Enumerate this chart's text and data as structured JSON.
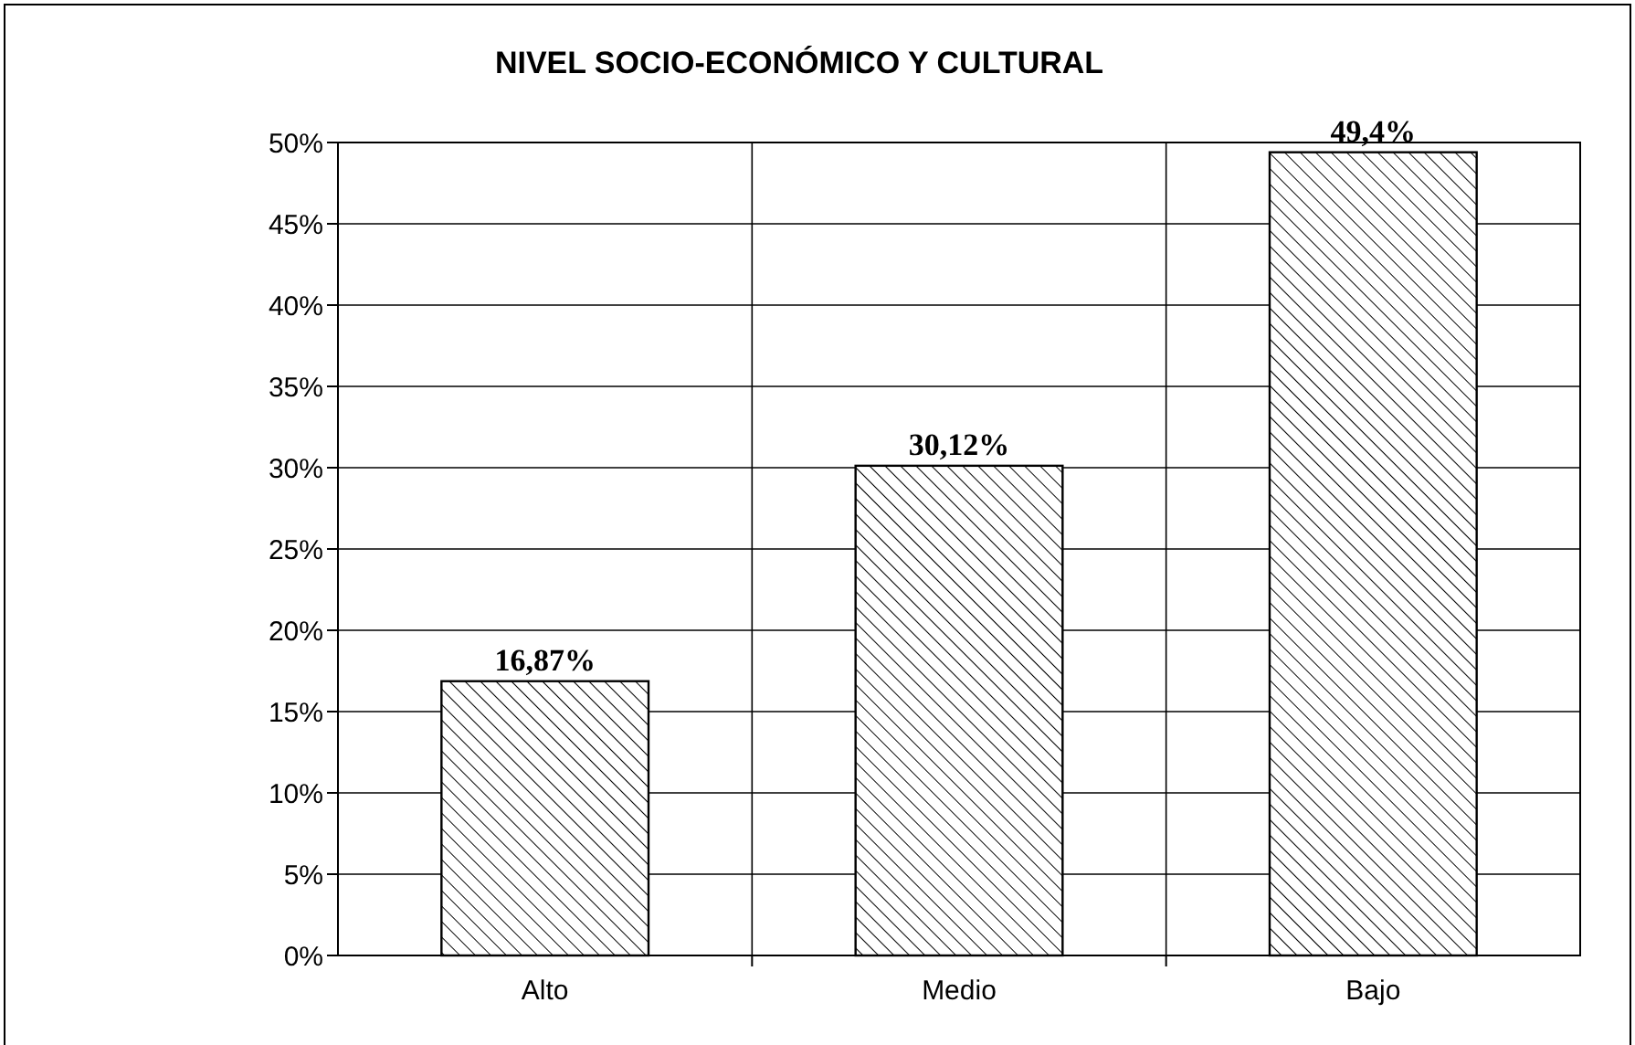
{
  "chart_data": {
    "type": "bar",
    "title": "NIVEL SOCIO-ECONÓMICO Y CULTURAL",
    "categories": [
      "Alto",
      "Medio",
      "Bajo"
    ],
    "values": [
      16.87,
      30.12,
      49.4
    ],
    "value_labels": [
      "16,87%",
      "30,12%",
      "49,4%"
    ],
    "color": "#000000",
    "ylim": [
      0,
      50
    ],
    "yticks": [
      {
        "value": 0,
        "label": "0%"
      },
      {
        "value": 5,
        "label": "5%"
      },
      {
        "value": 10,
        "label": "10%"
      },
      {
        "value": 15,
        "label": "15%"
      },
      {
        "value": 20,
        "label": "20%"
      },
      {
        "value": 25,
        "label": "25%"
      },
      {
        "value": 30,
        "label": "30%"
      },
      {
        "value": 35,
        "label": "35%"
      },
      {
        "value": 40,
        "label": "40%"
      },
      {
        "value": 45,
        "label": "45%"
      },
      {
        "value": 50,
        "label": "50%"
      }
    ],
    "grid": true
  }
}
